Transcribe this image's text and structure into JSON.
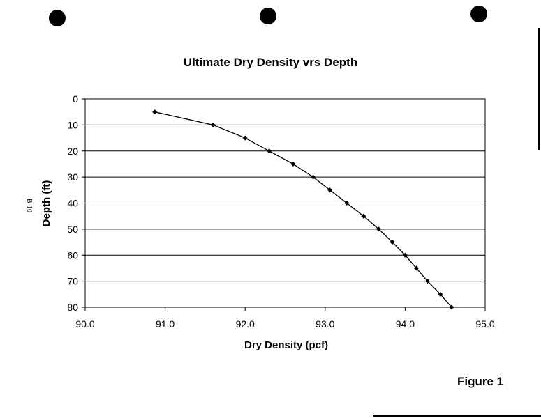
{
  "figure_label": "Figure 1",
  "side_note": "B-10",
  "chart_data": {
    "type": "line",
    "title": "Ultimate Dry Density vrs Depth",
    "xlabel": "Dry Density (pcf)",
    "ylabel": "Depth (ft)",
    "xlim": [
      90.0,
      95.0
    ],
    "ylim": [
      0,
      80
    ],
    "y_inverted": true,
    "x_ticks": [
      "90.0",
      "91.0",
      "92.0",
      "93.0",
      "94.0",
      "95.0"
    ],
    "y_ticks": [
      "0",
      "10",
      "20",
      "30",
      "40",
      "50",
      "60",
      "70",
      "80"
    ],
    "grid": "horizontal",
    "series": [
      {
        "x": [
          90.87,
          91.6,
          92.0,
          92.3,
          92.6,
          92.85,
          93.06,
          93.27,
          93.48,
          93.67,
          93.84,
          94.0,
          94.14,
          94.28,
          94.44,
          94.58
        ],
        "y": [
          5,
          10,
          15,
          20,
          25,
          30,
          35,
          40,
          45,
          50,
          55,
          60,
          65,
          70,
          75,
          80
        ]
      }
    ],
    "colors": {
      "line": "#000000",
      "marker": "#000000",
      "grid": "#000000"
    }
  }
}
